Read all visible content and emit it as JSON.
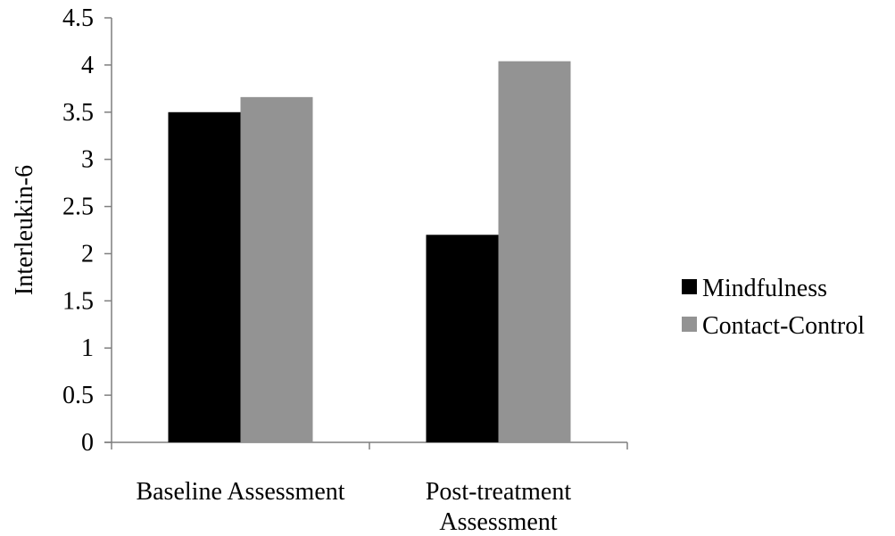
{
  "chart_data": {
    "type": "bar",
    "ylabel": "Interleukin-6",
    "ylim": [
      0,
      4.5
    ],
    "ytick_step": 0.5,
    "yticks": [
      "0",
      "0.5",
      "1",
      "1.5",
      "2",
      "2.5",
      "3",
      "3.5",
      "4",
      "4.5"
    ],
    "categories": [
      [
        "Baseline Assessment"
      ],
      [
        "Post-treatment",
        "Assessment"
      ]
    ],
    "series": [
      {
        "name": "Mindfulness",
        "color": "#000000",
        "values": [
          3.5,
          2.2
        ]
      },
      {
        "name": "Contact-Control",
        "color": "#939393",
        "values": [
          3.66,
          4.04
        ]
      }
    ],
    "legend_position": "right",
    "grid": false
  }
}
